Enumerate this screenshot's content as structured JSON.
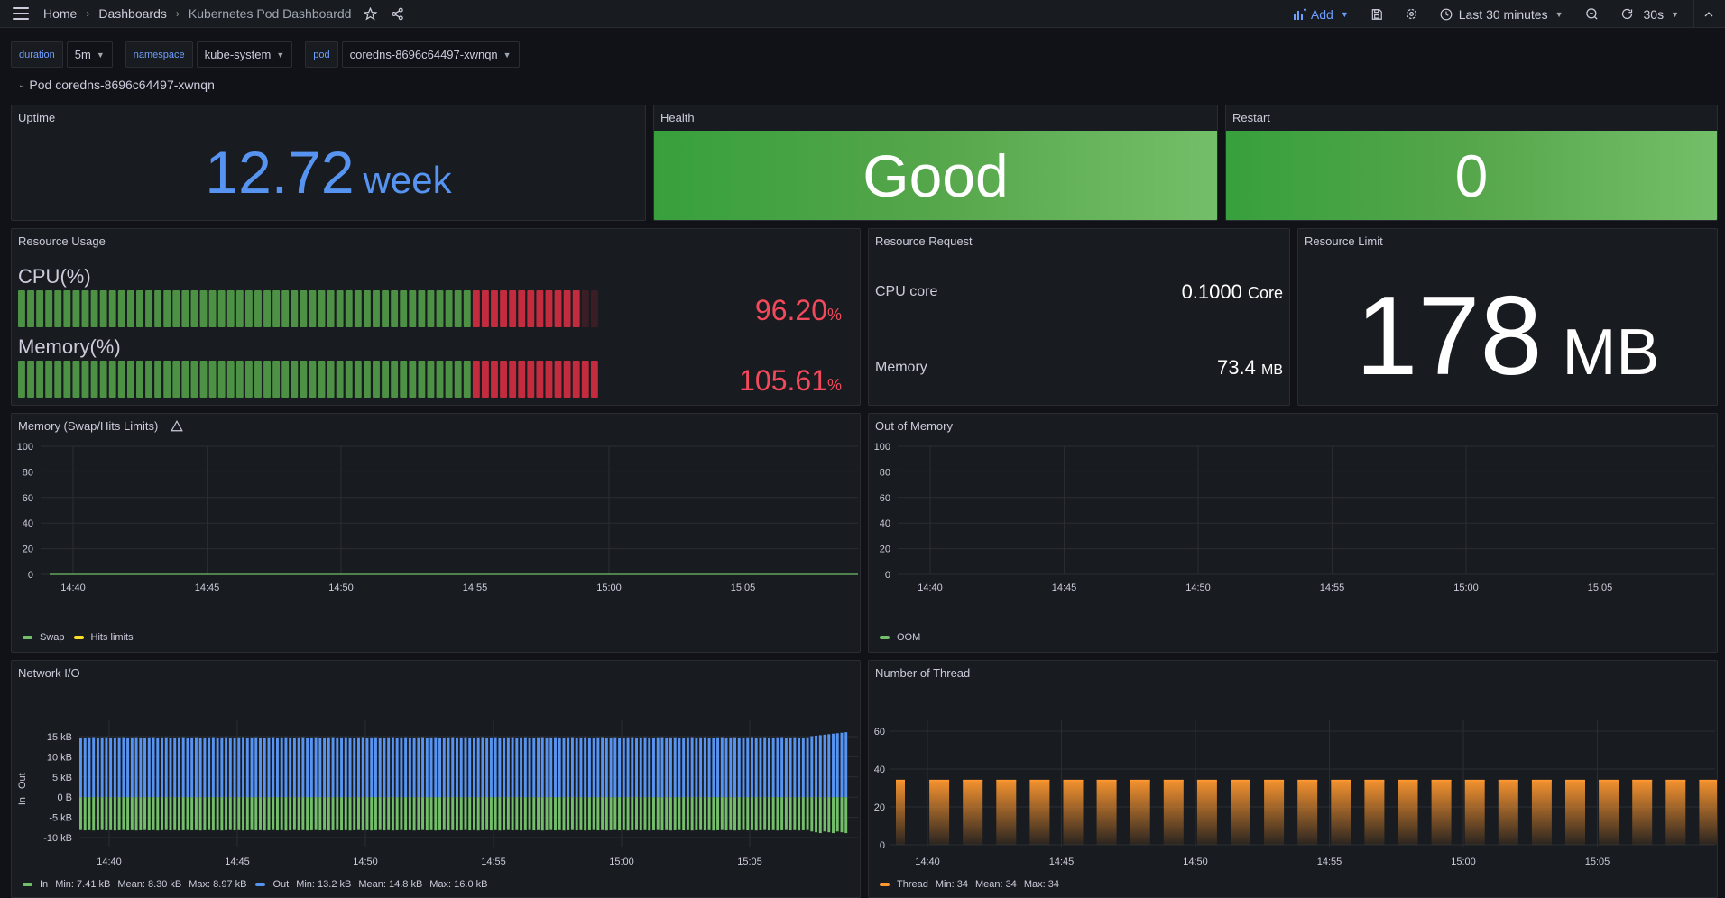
{
  "topbar": {
    "breadcrumbs": [
      "Home",
      "Dashboards",
      "Kubernetes Pod Dashboardd"
    ],
    "add_label": "Add",
    "time_range": "Last 30 minutes",
    "refresh": "30s"
  },
  "variables": [
    {
      "label": "duration",
      "value": "5m"
    },
    {
      "label": "namespace",
      "value": "kube-system"
    },
    {
      "label": "pod",
      "value": "coredns-8696c64497-xwnqn"
    }
  ],
  "row_title": "Pod coredns-8696c64497-xwnqn",
  "uptime": {
    "title": "Uptime",
    "value": "12.72",
    "unit": "week",
    "color": "#5794f2"
  },
  "health": {
    "title": "Health",
    "value": "Good"
  },
  "restart": {
    "title": "Restart",
    "value": "0"
  },
  "resource_usage": {
    "title": "Resource Usage",
    "cpu": {
      "label": "CPU(%)",
      "value": "96.20",
      "unit": "%",
      "pct": 96.2
    },
    "memory": {
      "label": "Memory(%)",
      "value": "105.61",
      "unit": "%",
      "pct": 105.61
    }
  },
  "resource_request": {
    "title": "Resource Request",
    "cpu_label": "CPU core",
    "cpu_value": "0.1000",
    "cpu_unit": "Core",
    "mem_label": "Memory",
    "mem_value": "73.4",
    "mem_unit": "MB"
  },
  "resource_limit": {
    "title": "Resource Limit",
    "value": "178",
    "unit": "MB"
  },
  "time_ticks": [
    "14:40",
    "14:45",
    "14:50",
    "14:55",
    "15:00",
    "15:05"
  ],
  "memory_swap": {
    "title": "Memory (Swap/Hits Limits)",
    "yticks": [
      "100",
      "80",
      "60",
      "40",
      "20",
      "0"
    ],
    "legend": [
      {
        "name": "Swap",
        "color": "#73bf69"
      },
      {
        "name": "Hits limits",
        "color": "#fade2a"
      }
    ]
  },
  "oom": {
    "title": "Out of Memory",
    "yticks": [
      "100",
      "80",
      "60",
      "40",
      "20",
      "0"
    ],
    "legend": [
      {
        "name": "OOM",
        "color": "#73bf69"
      }
    ]
  },
  "network": {
    "title": "Network I/O",
    "ylabel": "In | Out",
    "yticks": [
      "15 kB",
      "10 kB",
      "5 kB",
      "0 B",
      "-5 kB",
      "-10 kB"
    ],
    "legend_in": {
      "name": "In",
      "color": "#73bf69",
      "min": "Min: 7.41 kB",
      "mean": "Mean: 8.30 kB",
      "max": "Max: 8.97 kB"
    },
    "legend_out": {
      "name": "Out",
      "color": "#5794f2",
      "min": "Min: 13.2 kB",
      "mean": "Mean: 14.8 kB",
      "max": "Max: 16.0 kB"
    }
  },
  "threads": {
    "title": "Number of Thread",
    "yticks": [
      "60",
      "40",
      "20",
      "0"
    ],
    "value": 34,
    "legend": {
      "name": "Thread",
      "color": "#ff9830",
      "min": "Min: 34",
      "mean": "Mean: 34",
      "max": "Max: 34"
    }
  }
}
